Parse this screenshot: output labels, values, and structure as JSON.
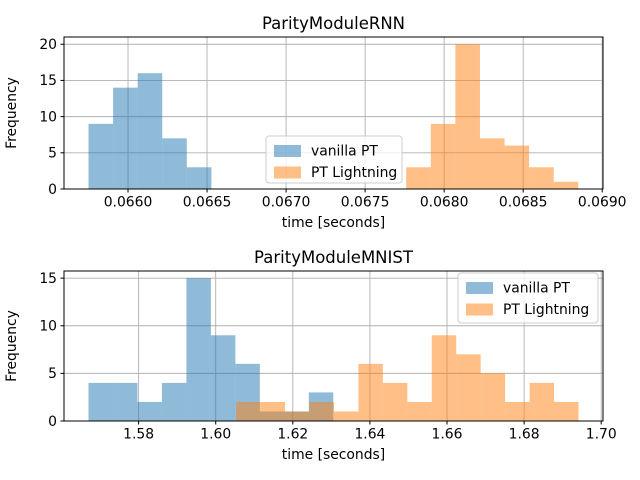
{
  "figure": {
    "background": "#ffffff"
  },
  "palette": {
    "vanilla_pt_base": "#1f77b4",
    "pt_lightning_base": "#ff7f0e",
    "vanilla_pt_fill": "rgba(31,119,180,0.5)",
    "pt_lightning_fill": "rgba(255,127,14,0.5)",
    "vanilla_pt_rendered": "#8fbbd9",
    "pt_lightning_rendered": "#ffbf86",
    "overlap_rendered": "#c79d73",
    "grid_color": "#b0b0b0",
    "spine_color": "#000000",
    "legend_border": "#cccccc",
    "legend_background": "rgba(255,255,255,0.8)",
    "text_color": "#000000"
  },
  "chart_data": [
    {
      "type": "bar",
      "subtype": "histogram",
      "title": "ParityModuleRNN",
      "xlabel": "time [seconds]",
      "ylabel": "Frequency",
      "xlim": [
        0.065595,
        0.069005
      ],
      "ylim": [
        0,
        21
      ],
      "grid": true,
      "xticks": {
        "values": [
          0.066,
          0.0665,
          0.067,
          0.0675,
          0.068,
          0.0685,
          0.069
        ],
        "labels": [
          "0.0660",
          "0.0665",
          "0.0670",
          "0.0675",
          "0.0680",
          "0.0685",
          "0.0690"
        ]
      },
      "yticks": {
        "values": [
          0,
          5,
          10,
          15,
          20
        ],
        "labels": [
          "0",
          "5",
          "10",
          "15",
          "20"
        ]
      },
      "legend": {
        "position": "center",
        "items": [
          {
            "label": "vanilla PT",
            "fill": "rgba(31,119,180,0.5)"
          },
          {
            "label": "PT Lightning",
            "fill": "rgba(255,127,14,0.5)"
          }
        ]
      },
      "series": [
        {
          "name": "vanilla PT",
          "fill": "rgba(31,119,180,0.5)",
          "bin_start": 0.06575,
          "bin_width": 0.0001555,
          "frequencies": [
            9,
            14,
            16,
            7,
            3
          ]
        },
        {
          "name": "PT Lightning",
          "fill": "rgba(255,127,14,0.5)",
          "bin_start": 0.06776,
          "bin_width": 0.0001555,
          "frequencies": [
            3,
            9,
            20,
            7,
            6,
            3,
            1
          ]
        }
      ]
    },
    {
      "type": "bar",
      "subtype": "histogram",
      "title": "ParityModuleMNIST",
      "xlabel": "time [seconds]",
      "ylabel": "Frequency",
      "xlim": [
        1.560645,
        1.700466
      ],
      "ylim": [
        0,
        15.75
      ],
      "grid": true,
      "xticks": {
        "values": [
          1.58,
          1.6,
          1.62,
          1.64,
          1.66,
          1.68,
          1.7
        ],
        "labels": [
          "1.58",
          "1.60",
          "1.62",
          "1.64",
          "1.66",
          "1.68",
          "1.70"
        ]
      },
      "yticks": {
        "values": [
          0,
          5,
          10,
          15
        ],
        "labels": [
          "0",
          "5",
          "10",
          "15"
        ]
      },
      "legend": {
        "position": "upper right",
        "items": [
          {
            "label": "vanilla PT",
            "fill": "rgba(31,119,180,0.5)"
          },
          {
            "label": "PT Lightning",
            "fill": "rgba(255,127,14,0.5)"
          }
        ]
      },
      "series": [
        {
          "name": "vanilla PT",
          "fill": "rgba(31,119,180,0.5)",
          "bin_start": 1.567,
          "bin_width": 0.00635,
          "frequencies": [
            4,
            4,
            2,
            4,
            15,
            9,
            6,
            1,
            1,
            3
          ]
        },
        {
          "name": "PT Lightning",
          "fill": "rgba(255,127,14,0.5)",
          "bin_start": 1.6053,
          "bin_width": 0.0063436,
          "frequencies": [
            2,
            2,
            1,
            2,
            1,
            6,
            4,
            2,
            9,
            7,
            5,
            2,
            4,
            2
          ]
        }
      ]
    }
  ]
}
